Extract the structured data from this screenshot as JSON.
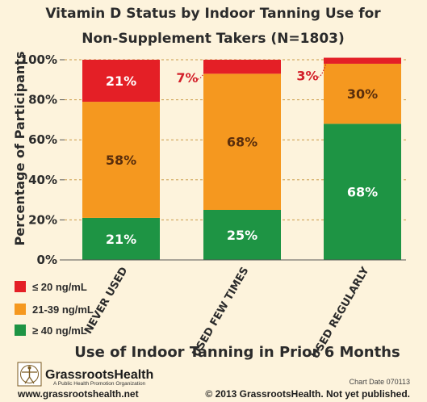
{
  "chart_data": {
    "type": "bar",
    "stacked": true,
    "title_lines": [
      "Vitamin D Status by Indoor Tanning Use for",
      "Non-Supplement Takers (N=1803)"
    ],
    "xlabel": "Use of Indoor Tanning in Prior 6 Months",
    "ylabel": "Percentage of Participants",
    "ylim": [
      0,
      100
    ],
    "y_ticks": [
      "0%",
      "20%",
      "40%",
      "60%",
      "80%",
      "100%"
    ],
    "y_tick_values": [
      0,
      20,
      40,
      60,
      80,
      100
    ],
    "grid": true,
    "categories": [
      "NEVER USED",
      "USED FEW TIMES",
      "USED REGULARLY"
    ],
    "series": [
      {
        "name": "≥ 40 ng/mL",
        "color": "#1e9444",
        "values": [
          21,
          25,
          68
        ],
        "labels": [
          "21%",
          "25%",
          "68%"
        ]
      },
      {
        "name": "21-39 ng/mL",
        "color": "#f5981f",
        "values": [
          58,
          68,
          30
        ],
        "labels": [
          "58%",
          "68%",
          "30%"
        ]
      },
      {
        "name": "≤ 20 ng/mL",
        "color": "#e41f26",
        "values": [
          21,
          7,
          3
        ],
        "labels": [
          "21%",
          "7%",
          "3%"
        ]
      }
    ],
    "legend_position": "bottom-left",
    "legend": [
      {
        "label": "≤ 20 ng/mL",
        "color": "#e41f26"
      },
      {
        "label": "21-39 ng/mL",
        "color": "#f5981f"
      },
      {
        "label": "≥ 40 ng/mL",
        "color": "#1e9444"
      }
    ]
  },
  "footer": {
    "brand_name": "GrassrootsHealth",
    "brand_tagline": "A Public Health Promotion Organization",
    "website": "www.grassrootshealth.net",
    "chart_date": "Chart Date 070113",
    "copyright": "© 2013 GrassrootsHealth. Not yet published."
  }
}
